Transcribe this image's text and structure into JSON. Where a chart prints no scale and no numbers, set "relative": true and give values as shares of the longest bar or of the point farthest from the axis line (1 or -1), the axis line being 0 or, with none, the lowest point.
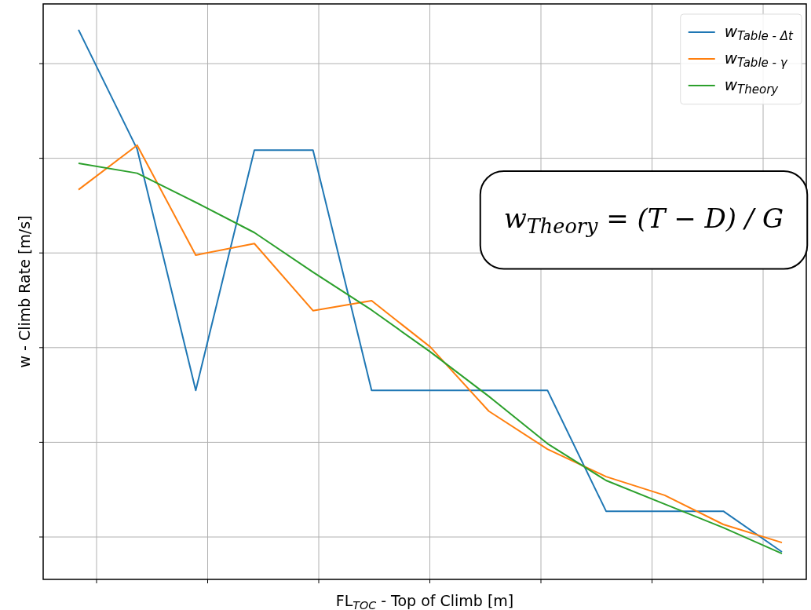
{
  "chart_data": {
    "type": "line",
    "relative": true,
    "xlabel": "FL$_{TOC}$ - Top of Climb [m]",
    "ylabel": "w - Climb Rate [m/s]",
    "categories": [
      null,
      null,
      null,
      null,
      null,
      null,
      null,
      null,
      null,
      null,
      null,
      null,
      null
    ],
    "series": [
      {
        "name": "w$_{Table - Δt}$",
        "color": "#1f77b4",
        "values": [
          1,
          0.783,
          0.344,
          0.781,
          0.781,
          0.344,
          0.344,
          0.344,
          0.344,
          0.124,
          0.124,
          0.124,
          0.05
        ]
      },
      {
        "name": "w$_{Table - γ}$",
        "color": "#ff7f0e",
        "values": [
          0.709,
          0.79,
          0.59,
          0.611,
          0.489,
          0.507,
          0.423,
          0.306,
          0.237,
          0.187,
          0.153,
          0.1,
          0.067
        ]
      },
      {
        "name": "w$_{Theory}$",
        "color": "#2ca02c",
        "values": [
          0.757,
          0.739,
          0.686,
          0.631,
          0.559,
          0.49,
          0.414,
          0.333,
          0.247,
          0.18,
          0.137,
          0.094,
          0.047
        ]
      }
    ],
    "annotations": [
      "w$_{Theory}$ = (T − D) / G"
    ],
    "grid": true,
    "legend": "top right",
    "marker": "none",
    "line_style": "solid"
  }
}
